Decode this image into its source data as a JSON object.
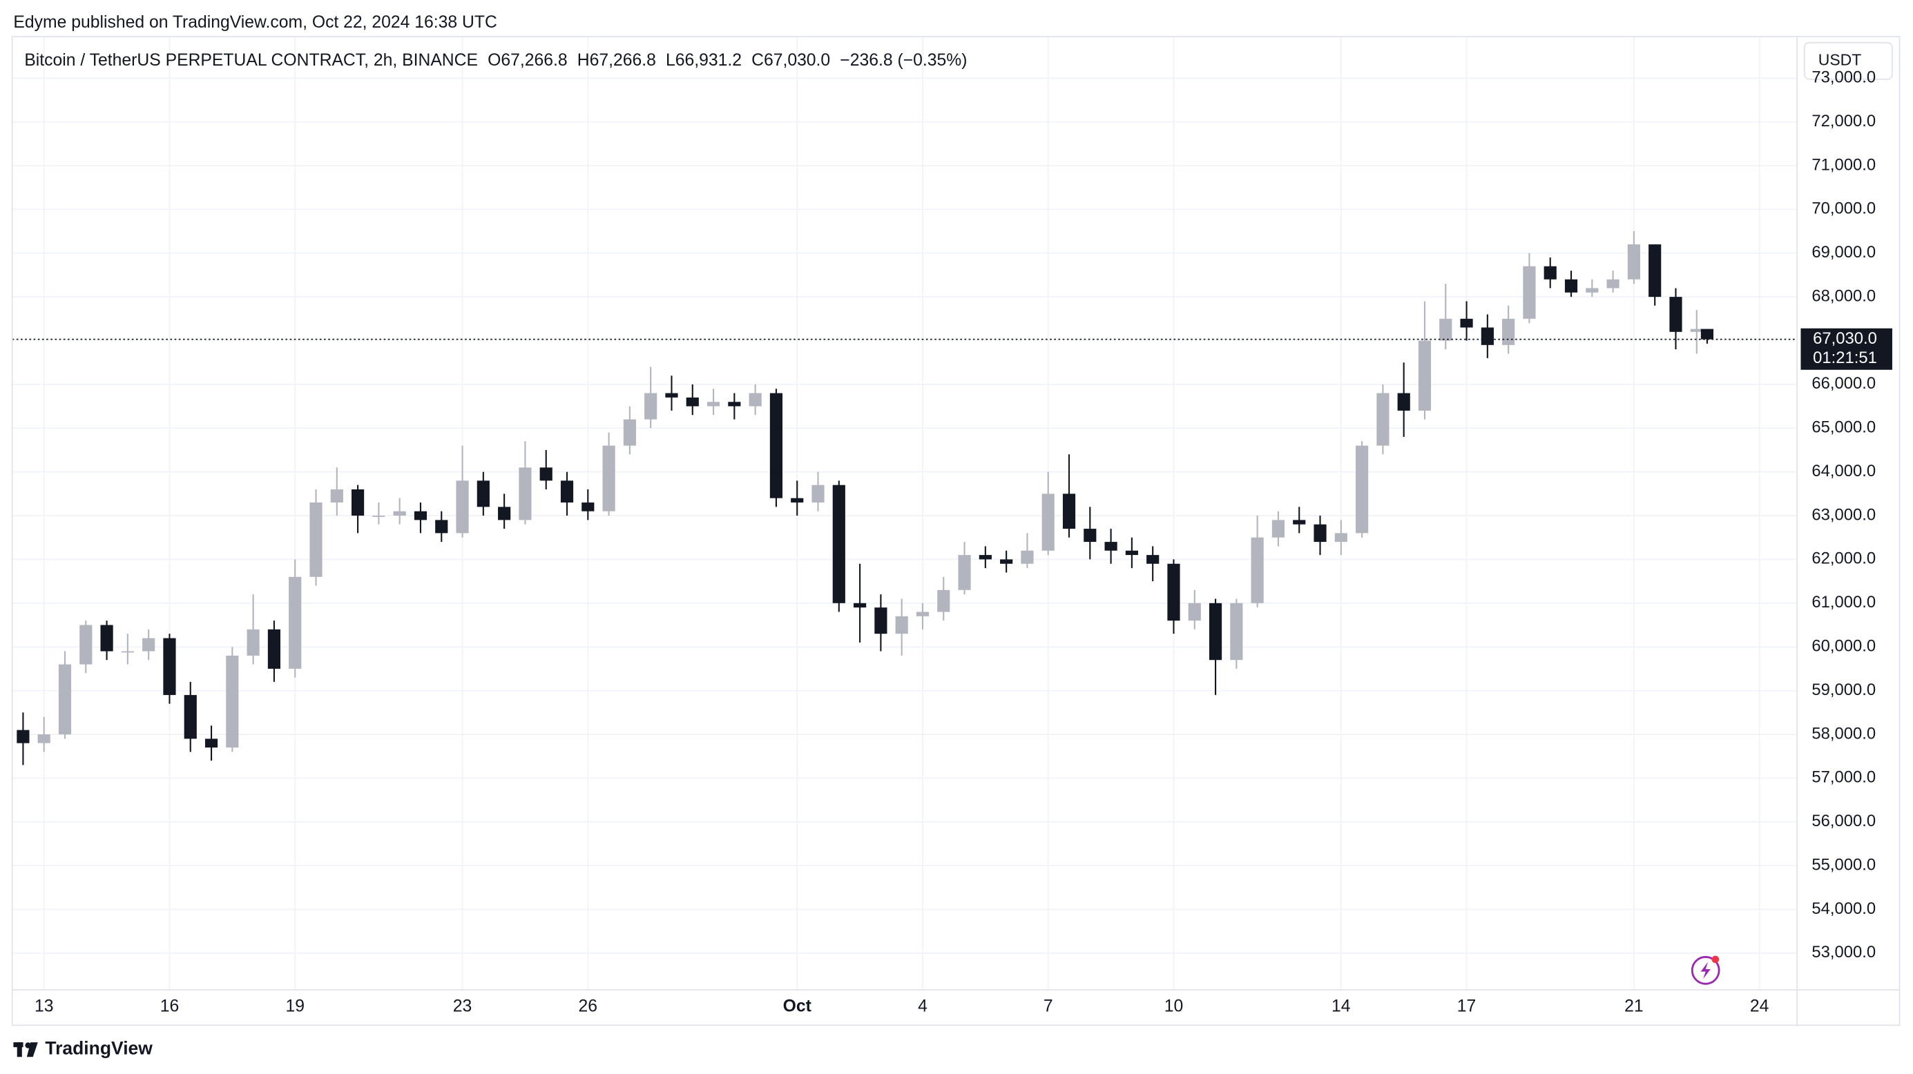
{
  "header": {
    "published": "Edyme published on TradingView.com, Oct 22, 2024 16:38 UTC",
    "brand": "TradingView"
  },
  "chart_data": {
    "type": "candlestick",
    "title": "Bitcoin / TetherUS PERPETUAL CONTRACT, 2h, BINANCE",
    "ohlc_labels": [
      "O67,266.8",
      "H67,266.8",
      "L66,931.2",
      "C67,030.0",
      "−236.8 (−0.35%)"
    ],
    "currency": "USDT",
    "last_price": {
      "value": 67030.0,
      "label": "67,030.0"
    },
    "countdown": "01:21:51",
    "up_color": "#b2b5be",
    "down_color": "#131722",
    "grid": true,
    "x": [
      12.5,
      13,
      13.5,
      14,
      14.5,
      15,
      15.5,
      16,
      16.5,
      17,
      17.5,
      18,
      18.5,
      19,
      19.5,
      20,
      20.5,
      21,
      21.5,
      22,
      22.5,
      23,
      23.5,
      24,
      24.5,
      25,
      25.5,
      26,
      26.5,
      27,
      27.5,
      28,
      28.5,
      29,
      29.5,
      30,
      30.5,
      31,
      31.5,
      32,
      32.5,
      33,
      33.5,
      34,
      34.5,
      35,
      35.5,
      36,
      36.5,
      37,
      37.5,
      38,
      38.5,
      39,
      39.5,
      40,
      40.5,
      41,
      41.5,
      42,
      42.5,
      43,
      43.5,
      44,
      44.5,
      45,
      45.5,
      46,
      46.5,
      47,
      47.5,
      48,
      48.5,
      49,
      49.5,
      50,
      50.5,
      51,
      51.5,
      52,
      52.5,
      52.75
    ],
    "open": [
      58100,
      57800,
      58000,
      59600,
      60500,
      59900,
      59900,
      60200,
      58900,
      57900,
      57700,
      59800,
      60400,
      59500,
      61600,
      63300,
      63600,
      63000,
      63000,
      63100,
      62900,
      62600,
      63800,
      63200,
      62900,
      64100,
      63800,
      63300,
      63100,
      64600,
      65200,
      65800,
      65700,
      65500,
      65600,
      65500,
      65800,
      63400,
      63300,
      63700,
      61000,
      60900,
      60300,
      60700,
      60800,
      61300,
      62100,
      62000,
      61900,
      62200,
      63500,
      62700,
      62400,
      62200,
      62100,
      61900,
      60600,
      61000,
      59700,
      61000,
      62500,
      62900,
      62800,
      62400,
      62600,
      64600,
      65800,
      65400,
      67000,
      67500,
      67300,
      66900,
      67500,
      68700,
      68400,
      68100,
      68200,
      68400,
      69200,
      68000,
      67200,
      67266.8
    ],
    "high": [
      58500,
      58400,
      59900,
      60600,
      60600,
      60300,
      60400,
      60300,
      59200,
      58200,
      60000,
      61200,
      60600,
      62000,
      63600,
      64100,
      63700,
      63300,
      63400,
      63300,
      63100,
      64600,
      64000,
      63500,
      64700,
      64500,
      64000,
      63600,
      64900,
      65500,
      66400,
      66200,
      66000,
      65900,
      65800,
      66000,
      65900,
      63800,
      64000,
      63800,
      61900,
      61200,
      61100,
      61000,
      61600,
      62400,
      62300,
      62200,
      62600,
      64000,
      64400,
      63200,
      62700,
      62500,
      62300,
      62000,
      61300,
      61100,
      61100,
      63000,
      63100,
      63200,
      63000,
      62900,
      64700,
      66000,
      66500,
      67900,
      68300,
      67900,
      67600,
      67800,
      69000,
      68900,
      68600,
      68400,
      68600,
      69500,
      69200,
      68200,
      67700,
      67266.8
    ],
    "low": [
      57300,
      57600,
      57900,
      59400,
      59700,
      59600,
      59700,
      58700,
      57600,
      57400,
      57600,
      59600,
      59200,
      59300,
      61400,
      63000,
      62600,
      62800,
      62800,
      62600,
      62400,
      62500,
      63000,
      62700,
      62800,
      63600,
      63000,
      62900,
      63000,
      64400,
      65000,
      65400,
      65300,
      65300,
      65200,
      65300,
      63200,
      63000,
      63100,
      60800,
      60100,
      59900,
      59800,
      60400,
      60600,
      61200,
      61800,
      61700,
      61800,
      62100,
      62500,
      62000,
      61900,
      61800,
      61500,
      60300,
      60400,
      58900,
      59500,
      60900,
      62300,
      62600,
      62100,
      62100,
      62500,
      64400,
      64800,
      65200,
      66800,
      67000,
      66600,
      66700,
      67400,
      68200,
      68000,
      68000,
      68100,
      68300,
      67800,
      66800,
      66700,
      66931.2
    ],
    "close": [
      57800,
      58000,
      59600,
      60500,
      59900,
      59900,
      60200,
      58900,
      57900,
      57700,
      59800,
      60400,
      59500,
      61600,
      63300,
      63600,
      63000,
      63000,
      63100,
      62900,
      62600,
      63800,
      63200,
      62900,
      64100,
      63800,
      63300,
      63100,
      64600,
      65200,
      65800,
      65700,
      65500,
      65600,
      65500,
      65800,
      63400,
      63300,
      63700,
      61000,
      60900,
      60300,
      60700,
      60800,
      61300,
      62100,
      62000,
      61900,
      62200,
      63500,
      62700,
      62400,
      62200,
      62100,
      61900,
      60600,
      61000,
      59700,
      61000,
      62500,
      62900,
      62800,
      62400,
      62600,
      64600,
      65800,
      65400,
      67000,
      67500,
      67300,
      66900,
      67500,
      68700,
      68400,
      68100,
      68200,
      68400,
      69200,
      68000,
      67200,
      67266.8,
      67030.0
    ],
    "xlim": [
      12.24,
      54.9
    ],
    "xticks": [
      {
        "value": 13,
        "label": "13"
      },
      {
        "value": 16,
        "label": "16"
      },
      {
        "value": 19,
        "label": "19"
      },
      {
        "value": 23,
        "label": "23"
      },
      {
        "value": 26,
        "label": "26"
      },
      {
        "value": 31,
        "label": "Oct"
      },
      {
        "value": 34,
        "label": "4"
      },
      {
        "value": 37,
        "label": "7"
      },
      {
        "value": 40,
        "label": "10"
      },
      {
        "value": 44,
        "label": "14"
      },
      {
        "value": 47,
        "label": "17"
      },
      {
        "value": 51,
        "label": "21"
      },
      {
        "value": 54,
        "label": "24"
      }
    ],
    "ylim": [
      52160,
      73950
    ],
    "yticks": [
      {
        "value": 53000,
        "label": "53,000.0"
      },
      {
        "value": 54000,
        "label": "54,000.0"
      },
      {
        "value": 55000,
        "label": "55,000.0"
      },
      {
        "value": 56000,
        "label": "56,000.0"
      },
      {
        "value": 57000,
        "label": "57,000.0"
      },
      {
        "value": 58000,
        "label": "58,000.0"
      },
      {
        "value": 59000,
        "label": "59,000.0"
      },
      {
        "value": 60000,
        "label": "60,000.0"
      },
      {
        "value": 61000,
        "label": "61,000.0"
      },
      {
        "value": 62000,
        "label": "62,000.0"
      },
      {
        "value": 63000,
        "label": "63,000.0"
      },
      {
        "value": 64000,
        "label": "64,000.0"
      },
      {
        "value": 65000,
        "label": "65,000.0"
      },
      {
        "value": 66000,
        "label": "66,000.0"
      },
      {
        "value": 68000,
        "label": "68,000.0"
      },
      {
        "value": 69000,
        "label": "69,000.0"
      },
      {
        "value": 70000,
        "label": "70,000.0"
      },
      {
        "value": 71000,
        "label": "71,000.0"
      },
      {
        "value": 72000,
        "label": "72,000.0"
      },
      {
        "value": 73000,
        "label": "73,000.0"
      }
    ]
  }
}
